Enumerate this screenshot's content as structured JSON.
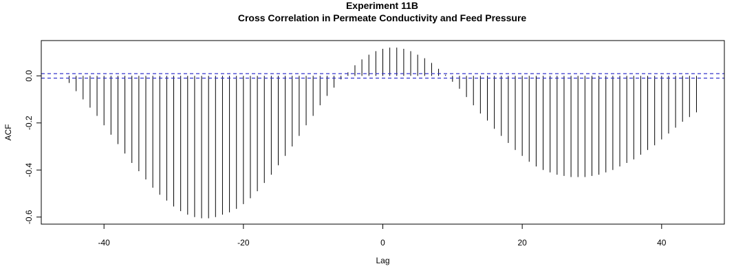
{
  "title": "Experiment  11B",
  "subtitle": "Cross Correlation in Permeate Conductivity and Feed Pressure",
  "chart_data": {
    "type": "bar",
    "xlabel": "Lag",
    "ylabel": "ACF",
    "xlim": [
      -49,
      49
    ],
    "ylim": [
      -0.63,
      0.15
    ],
    "x_ticks": [
      -40,
      -20,
      0,
      20,
      40
    ],
    "x_tick_labels": [
      "-40",
      "-20",
      "0",
      "20",
      "40"
    ],
    "y_ticks": [
      -0.6,
      -0.4,
      -0.2,
      0.0
    ],
    "y_tick_labels": [
      "-0.6",
      "-0.4",
      "-0.2",
      "0.0"
    ],
    "confidence_limits": [
      0.0095,
      -0.0095
    ],
    "confidence_color": "#3333cc",
    "bar_color": "#000000",
    "lags": [
      -45,
      -44,
      -43,
      -42,
      -41,
      -40,
      -39,
      -38,
      -37,
      -36,
      -35,
      -34,
      -33,
      -32,
      -31,
      -30,
      -29,
      -28,
      -27,
      -26,
      -25,
      -24,
      -23,
      -22,
      -21,
      -20,
      -19,
      -18,
      -17,
      -16,
      -15,
      -14,
      -13,
      -12,
      -11,
      -10,
      -9,
      -8,
      -7,
      -6,
      -5,
      -4,
      -3,
      -2,
      -1,
      0,
      1,
      2,
      3,
      4,
      5,
      6,
      7,
      8,
      9,
      10,
      11,
      12,
      13,
      14,
      15,
      16,
      17,
      18,
      19,
      20,
      21,
      22,
      23,
      24,
      25,
      26,
      27,
      28,
      29,
      30,
      31,
      32,
      33,
      34,
      35,
      36,
      37,
      38,
      39,
      40,
      41,
      42,
      43,
      44,
      45
    ],
    "values": [
      -0.03,
      -0.065,
      -0.1,
      -0.135,
      -0.17,
      -0.21,
      -0.25,
      -0.29,
      -0.33,
      -0.37,
      -0.405,
      -0.44,
      -0.475,
      -0.505,
      -0.53,
      -0.555,
      -0.575,
      -0.59,
      -0.6,
      -0.605,
      -0.605,
      -0.6,
      -0.59,
      -0.58,
      -0.565,
      -0.545,
      -0.52,
      -0.49,
      -0.455,
      -0.42,
      -0.38,
      -0.34,
      -0.3,
      -0.255,
      -0.21,
      -0.17,
      -0.125,
      -0.085,
      -0.05,
      -0.015,
      0.015,
      0.045,
      0.07,
      0.09,
      0.105,
      0.115,
      0.12,
      0.12,
      0.115,
      0.105,
      0.09,
      0.075,
      0.055,
      0.03,
      0.005,
      -0.025,
      -0.055,
      -0.09,
      -0.125,
      -0.16,
      -0.19,
      -0.225,
      -0.255,
      -0.285,
      -0.315,
      -0.34,
      -0.365,
      -0.385,
      -0.4,
      -0.41,
      -0.42,
      -0.425,
      -0.43,
      -0.43,
      -0.43,
      -0.425,
      -0.42,
      -0.41,
      -0.4,
      -0.385,
      -0.37,
      -0.355,
      -0.335,
      -0.315,
      -0.295,
      -0.27,
      -0.245,
      -0.22,
      -0.195,
      -0.175,
      -0.155
    ]
  }
}
